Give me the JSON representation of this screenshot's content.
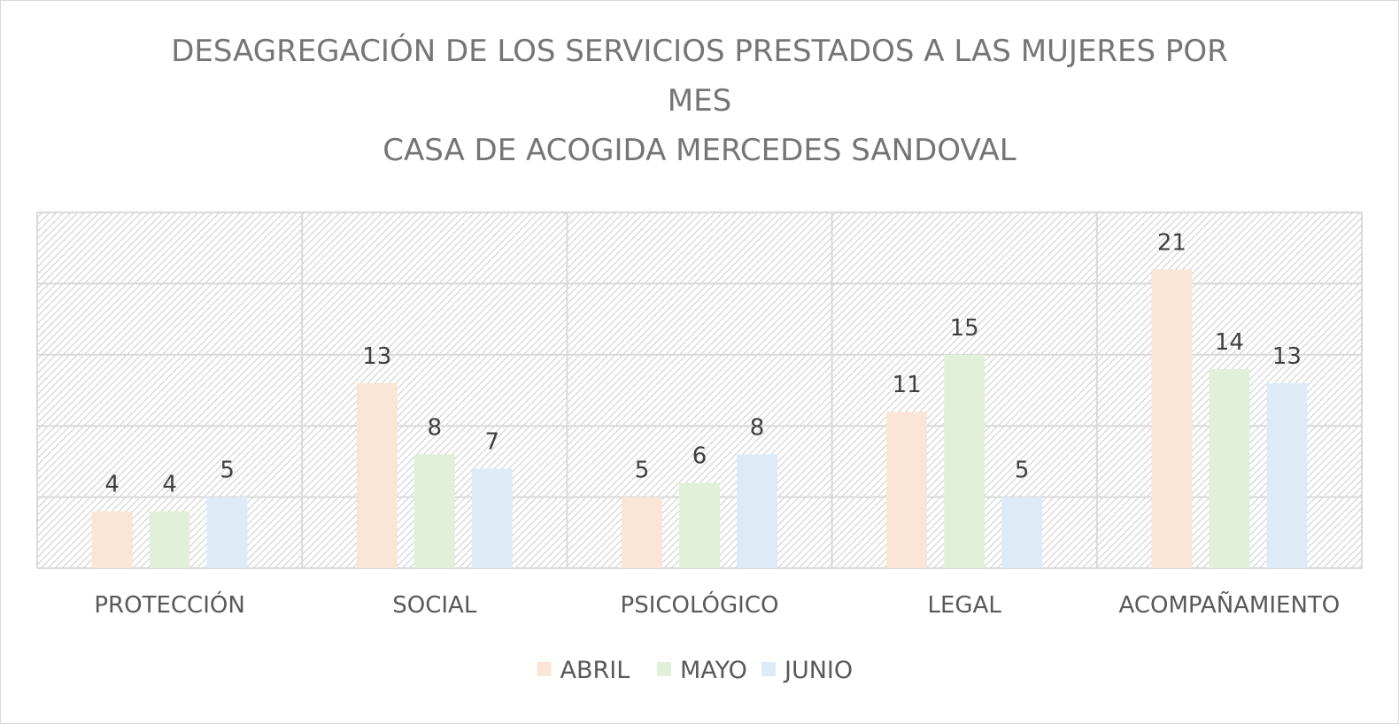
{
  "chart_data": {
    "type": "bar",
    "title_lines": [
      "DESAGREGACIÓN DE LOS SERVICIOS PRESTADOS A LAS MUJERES POR",
      "MES",
      "CASA DE ACOGIDA MERCEDES SANDOVAL"
    ],
    "categories": [
      "PROTECCIÓN",
      "SOCIAL",
      "PSICOLÓGICO",
      "LEGAL",
      "ACOMPAÑAMIENTO"
    ],
    "series": [
      {
        "name": "ABRIL",
        "color": "#fbe5d6",
        "values": [
          4,
          13,
          5,
          11,
          21
        ]
      },
      {
        "name": "MAYO",
        "color": "#e2f0d9",
        "values": [
          4,
          8,
          6,
          15,
          14
        ]
      },
      {
        "name": "JUNIO",
        "color": "#deebf7",
        "values": [
          5,
          7,
          8,
          5,
          13
        ]
      }
    ],
    "ylim": [
      0,
      25
    ],
    "grid": true,
    "legend": "bottom",
    "background": "hatched"
  }
}
